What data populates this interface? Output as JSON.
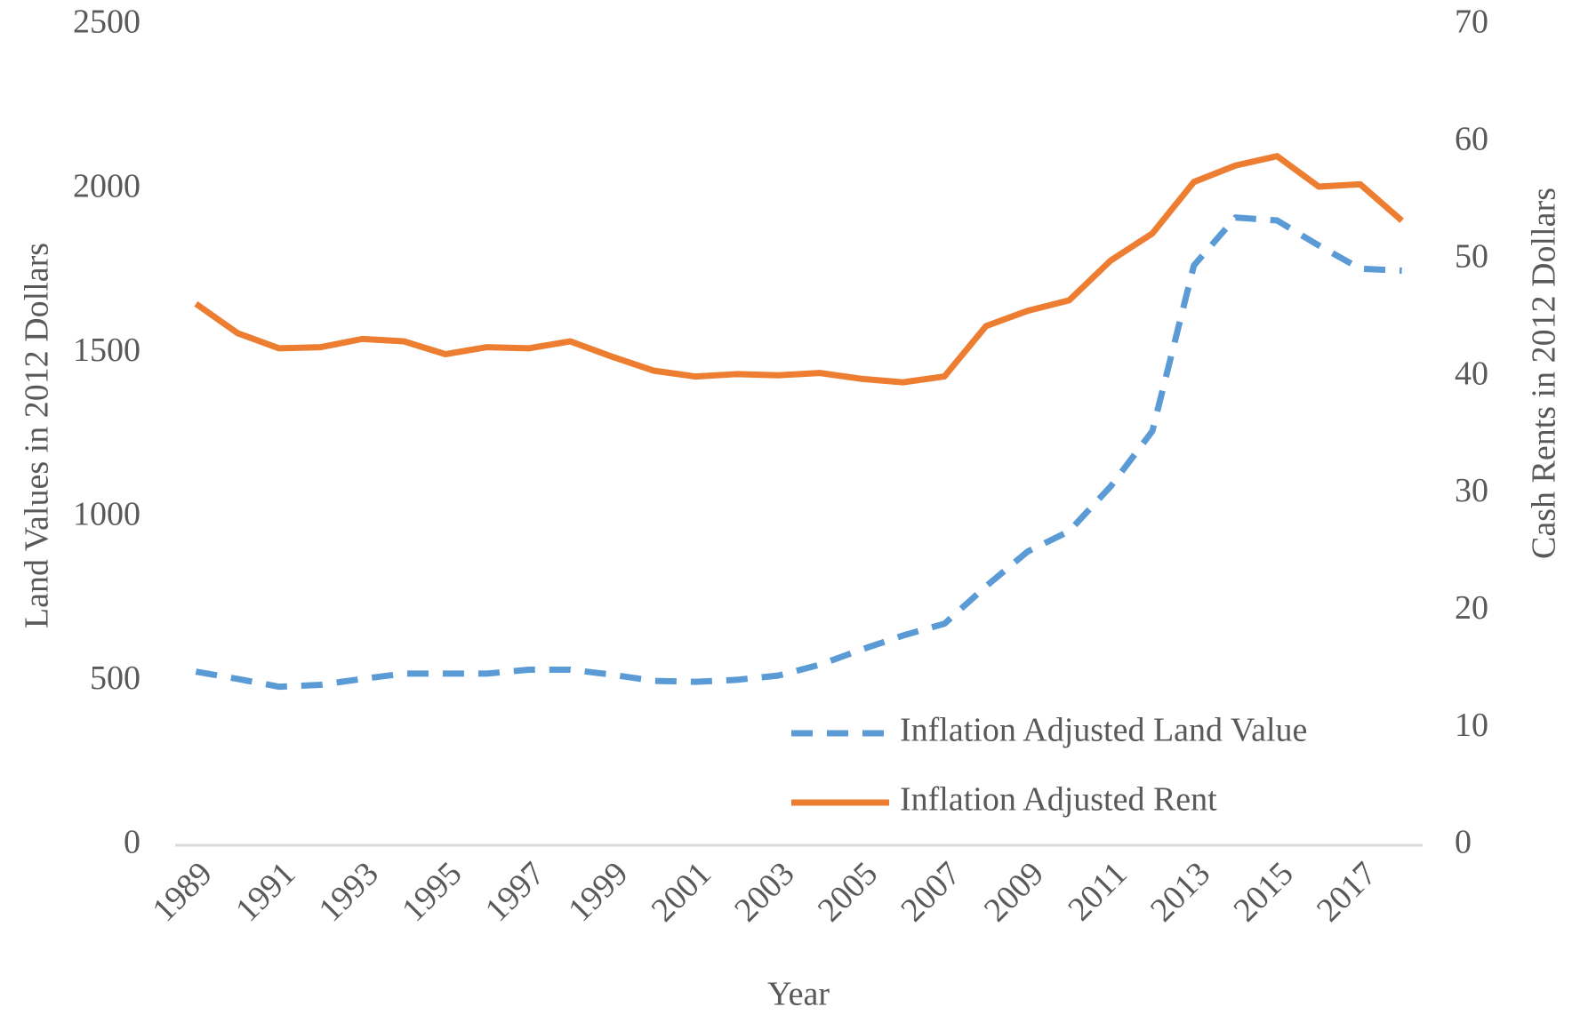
{
  "chart_data": {
    "type": "line",
    "x_label": "Year",
    "y_label": "Land Values in 2012 Dollars",
    "y2_label": "Cash Rents in 2012 Dollars",
    "categories": [
      "1989",
      null,
      "1991",
      null,
      "1993",
      null,
      "1995",
      null,
      "1997",
      null,
      "1999",
      null,
      "2001",
      null,
      "2003",
      null,
      "2005",
      null,
      "2007",
      null,
      "2009",
      null,
      "2011",
      null,
      "2013",
      null,
      "2015",
      null,
      "2017",
      null
    ],
    "series": [
      {
        "name": "Inflation Adjusted Land Value",
        "color": "#5b9bd5",
        "dashed": true,
        "values": [
          529,
          507,
          483,
          489,
          507,
          523,
          523,
          523,
          535,
          535,
          520,
          501,
          498,
          504,
          517,
          550,
          596,
          639,
          675,
          789,
          895,
          957,
          1094,
          1262,
          1767,
          1913,
          1904,
          1828,
          1757,
          1751
        ]
      },
      {
        "name": "Inflation Adjusted Rent",
        "color": "#ed7d31",
        "dashed": false,
        "axis": "y2",
        "values": [
          46.2,
          43.7,
          42.4,
          42.5,
          43.2,
          43.0,
          41.9,
          42.5,
          42.4,
          43.0,
          41.7,
          40.5,
          40.0,
          40.2,
          40.1,
          40.3,
          39.8,
          39.5,
          40.0,
          44.3,
          45.6,
          46.5,
          49.9,
          52.2,
          56.6,
          58.0,
          58.8,
          56.2,
          56.4,
          53.3
        ]
      }
    ],
    "ylim": [
      0,
      2500
    ],
    "yticks": [
      0,
      500,
      1000,
      1500,
      2000,
      2500
    ],
    "y2lim": [
      0,
      70
    ],
    "y2ticks": [
      0,
      10,
      20,
      30,
      40,
      50,
      60,
      70
    ],
    "grid": false,
    "legend": "lower right"
  }
}
